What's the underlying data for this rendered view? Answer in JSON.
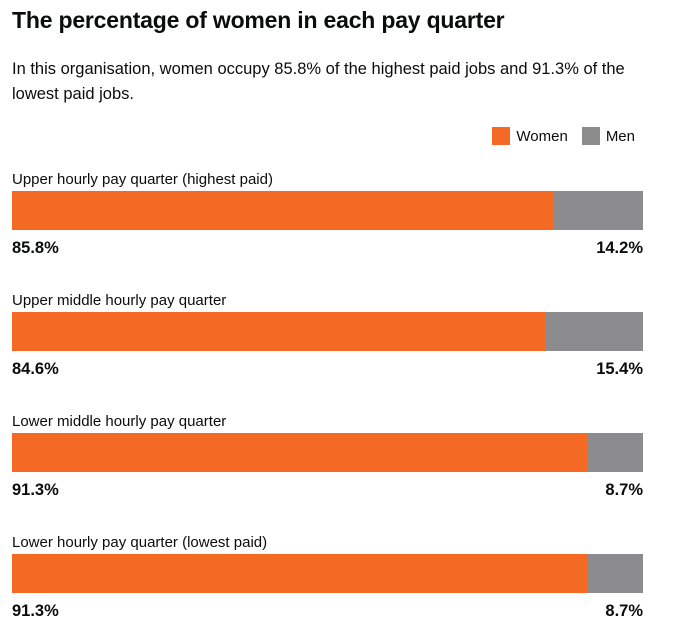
{
  "chart_data": {
    "type": "bar",
    "orientation": "horizontal",
    "stacked": true,
    "title": "The percentage of women in each pay quarter",
    "subtitle": "In this organisation, women occupy 85.8% of the highest paid jobs and 91.3% of the lowest paid jobs.",
    "legend": {
      "position": "top-right",
      "items": [
        {
          "name": "Women",
          "color": "#f46a25"
        },
        {
          "name": "Men",
          "color": "#8c8c8f"
        }
      ]
    },
    "categories": [
      "Upper hourly pay quarter (highest paid)",
      "Upper middle hourly pay quarter",
      "Lower middle hourly pay quarter",
      "Lower hourly pay quarter (lowest paid)"
    ],
    "series": [
      {
        "name": "Women",
        "color": "#f46a25",
        "values": [
          85.8,
          84.6,
          91.3,
          91.3
        ],
        "labels": [
          "85.8%",
          "84.6%",
          "91.3%",
          "91.3%"
        ]
      },
      {
        "name": "Men",
        "color": "#8c8c8f",
        "values": [
          14.2,
          15.4,
          8.7,
          8.7
        ],
        "labels": [
          "14.2%",
          "15.4%",
          "8.7%",
          "8.7%"
        ]
      }
    ],
    "xlim": [
      0,
      100
    ]
  }
}
